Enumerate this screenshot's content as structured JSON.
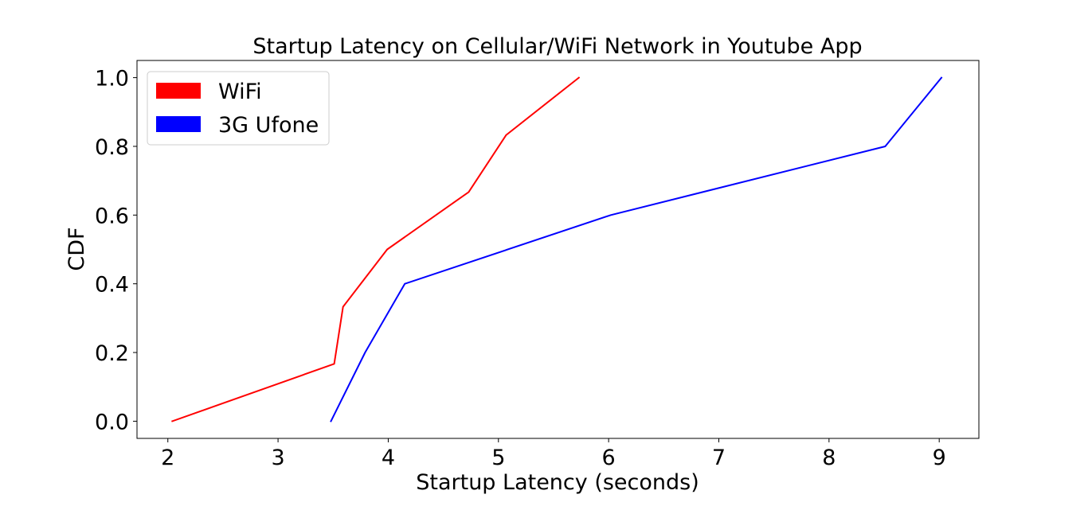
{
  "chart_data": {
    "type": "line",
    "title": "Startup Latency on Cellular/WiFi Network in Youtube App",
    "xlabel": "Startup Latency (seconds)",
    "ylabel": "CDF",
    "xlim": [
      1.72,
      9.36
    ],
    "ylim": [
      -0.05,
      1.05
    ],
    "xticks": [
      2,
      3,
      4,
      5,
      6,
      7,
      8,
      9
    ],
    "yticks": [
      0.0,
      0.2,
      0.4,
      0.6,
      0.8,
      1.0
    ],
    "ytick_labels": [
      "0.0",
      "0.2",
      "0.4",
      "0.6",
      "0.8",
      "1.0"
    ],
    "grid": false,
    "legend_position": "top-left",
    "series": [
      {
        "name": "WiFi",
        "color": "#ff0000",
        "x": [
          2.04,
          3.51,
          3.59,
          3.99,
          4.73,
          5.07,
          5.73
        ],
        "y": [
          0.0,
          0.167,
          0.333,
          0.5,
          0.667,
          0.833,
          1.0
        ]
      },
      {
        "name": "3G Ufone",
        "color": "#0000ff",
        "x": [
          3.48,
          3.79,
          4.15,
          6.02,
          8.51,
          9.02
        ],
        "y": [
          0.0,
          0.2,
          0.4,
          0.6,
          0.8,
          1.0
        ]
      }
    ]
  }
}
